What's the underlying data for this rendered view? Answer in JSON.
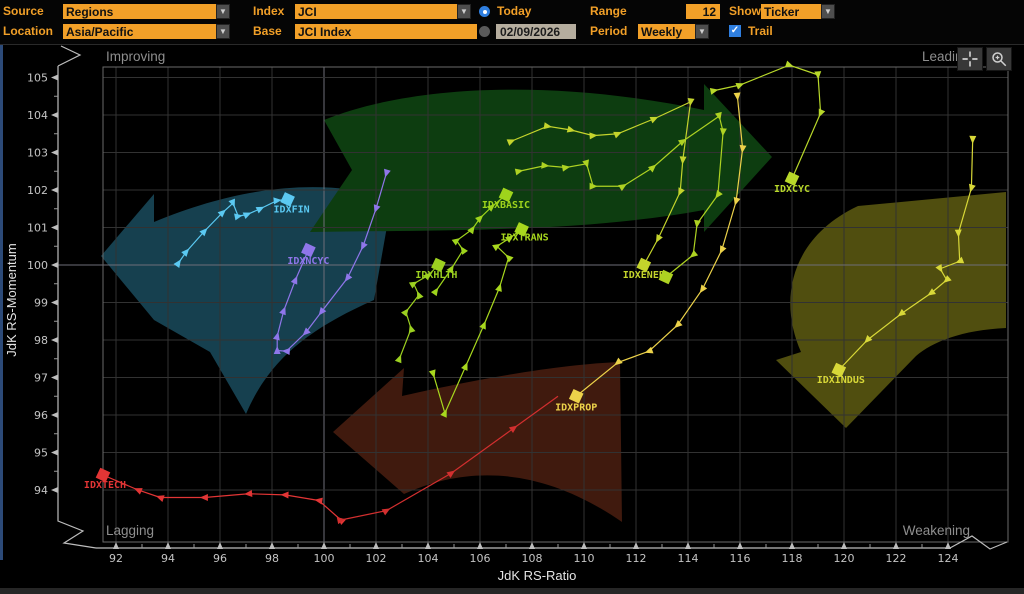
{
  "toolbar": {
    "source_label": "Source",
    "source_value": "Regions",
    "index_label": "Index",
    "index_value": "JCI",
    "today_label": "Today",
    "range_label": "Range",
    "range_value": "12",
    "show_label": "Show",
    "show_value": "Ticker",
    "location_label": "Location",
    "location_value": "Asia/Pacific",
    "base_label": "Base",
    "base_value": "JCI Index",
    "date_value": "02/09/2026",
    "period_label": "Period",
    "period_value": "Weekly",
    "trail_label": "Trail"
  },
  "colors": {
    "accent_orange": "#f2a028",
    "radio_blue": "#2f7fe0",
    "date_field_bg": "#b5ad9e",
    "grid": "#323232",
    "grid_center": "#6e6e78",
    "box_border": "#6a6a6a",
    "tick_text": "#c4c4c4",
    "quadrant_text": "#8e8e8e",
    "axis_title_text": "#e4e4e4"
  },
  "chart_data": {
    "type": "scatter",
    "xlabel": "JdK RS-Ratio",
    "ylabel": "JdK RS-Momentum",
    "x_ticks": [
      92,
      94,
      96,
      98,
      100,
      102,
      104,
      106,
      108,
      110,
      112,
      114,
      116,
      118,
      120,
      122,
      124
    ],
    "y_ticks": [
      94,
      95,
      96,
      97,
      98,
      99,
      100,
      101,
      102,
      103,
      104,
      105
    ],
    "xlim": [
      91.5,
      126.3
    ],
    "ylim": [
      92.6,
      105.3
    ],
    "center": [
      100,
      100
    ],
    "grid": true,
    "quadrant_labels": {
      "top_left": "Improving",
      "top_right": "Leading",
      "bottom_left": "Lagging",
      "bottom_right": "Weakening"
    },
    "quadrant_arrow_colors": {
      "left": "#16404f",
      "top": "#0d3d10",
      "right": "#504e0f",
      "bottom": "#401a0e"
    },
    "series": [
      {
        "label": "IDXTECH",
        "color": "#e23535",
        "head": [
          91.5,
          94.4
        ],
        "label_dx": 2,
        "label_dy": 13,
        "trail": [
          [
            100.65,
            93.2
          ],
          [
            99.8,
            93.72
          ],
          [
            98.5,
            93.87
          ],
          [
            97.1,
            93.9
          ],
          [
            95.4,
            93.8
          ],
          [
            93.7,
            93.8
          ],
          [
            92.85,
            94.0
          ]
        ]
      },
      {
        "label": "",
        "color": "#d22f2f",
        "head": null,
        "trail": [
          [
            100.65,
            93.2
          ],
          [
            102.4,
            93.45
          ],
          [
            104.9,
            94.45
          ],
          [
            107.3,
            95.65
          ],
          [
            109.0,
            96.5
          ]
        ]
      },
      {
        "label": "IDXNCYC",
        "color": "#8f76ea",
        "head": [
          99.4,
          100.4
        ],
        "label_dx": 0,
        "label_dy": 14,
        "trail": [
          [
            102.4,
            102.45
          ],
          [
            102.0,
            101.5
          ],
          [
            101.5,
            100.5
          ],
          [
            100.9,
            99.65
          ],
          [
            99.9,
            98.75
          ],
          [
            99.3,
            98.2
          ],
          [
            98.55,
            97.7
          ],
          [
            98.2,
            97.72
          ],
          [
            98.2,
            98.1
          ],
          [
            98.45,
            98.78
          ],
          [
            98.9,
            99.6
          ]
        ]
      },
      {
        "label": "IDXFIN",
        "color": "#5bc9f2",
        "head": [
          98.6,
          101.75
        ],
        "label_dx": 4,
        "label_dy": 13,
        "trail": [
          [
            94.4,
            100.05
          ],
          [
            94.7,
            100.35
          ],
          [
            95.4,
            100.9
          ],
          [
            96.1,
            101.4
          ],
          [
            96.5,
            101.65
          ],
          [
            96.7,
            101.3
          ],
          [
            97.05,
            101.35
          ],
          [
            97.55,
            101.5
          ],
          [
            98.2,
            101.72
          ]
        ]
      },
      {
        "label": "IDXHLTH",
        "color": "#9cd020",
        "head": [
          104.4,
          100.0
        ],
        "label_dx": -2,
        "label_dy": 13,
        "trail": [
          [
            102.9,
            97.5
          ],
          [
            103.35,
            98.3
          ],
          [
            103.15,
            98.75
          ],
          [
            103.65,
            99.2
          ],
          [
            103.45,
            99.5
          ],
          [
            104.0,
            99.72
          ]
        ]
      },
      {
        "label": "IDXTRANS",
        "color": "#a8d81e",
        "head": [
          107.6,
          100.95
        ],
        "label_dx": 3,
        "label_dy": 11,
        "trail": [
          [
            104.2,
            97.1
          ],
          [
            104.65,
            96.05
          ],
          [
            105.45,
            97.3
          ],
          [
            106.15,
            98.4
          ],
          [
            106.75,
            99.4
          ],
          [
            107.1,
            100.2
          ],
          [
            106.65,
            100.5
          ],
          [
            107.15,
            100.72
          ]
        ]
      },
      {
        "label": "IDXBASIC",
        "color": "#9ed41c",
        "head": [
          107.0,
          101.87
        ],
        "label_dx": 0,
        "label_dy": 13,
        "trail": [
          [
            104.3,
            99.3
          ],
          [
            104.9,
            99.9
          ],
          [
            105.35,
            100.4
          ],
          [
            105.1,
            100.65
          ],
          [
            105.7,
            100.95
          ],
          [
            106.0,
            101.25
          ],
          [
            106.45,
            101.55
          ]
        ]
      },
      {
        "label": "IDXENER",
        "color": "#c4d42c",
        "head": [
          112.3,
          100.0
        ],
        "label_dx": 0,
        "label_dy": 13,
        "trail": [
          [
            107.2,
            103.3
          ],
          [
            108.6,
            103.7
          ],
          [
            109.5,
            103.6
          ],
          [
            110.35,
            103.45
          ],
          [
            111.3,
            103.5
          ],
          [
            112.7,
            103.9
          ],
          [
            114.1,
            104.35
          ],
          [
            113.8,
            102.8
          ],
          [
            113.7,
            101.95
          ],
          [
            112.85,
            100.7
          ]
        ]
      },
      {
        "label": "",
        "color": "#aed222",
        "head": [
          113.15,
          99.68
        ],
        "trail": [
          [
            107.5,
            102.5
          ],
          [
            108.5,
            102.65
          ],
          [
            109.3,
            102.6
          ],
          [
            110.1,
            102.7
          ],
          [
            110.35,
            102.1
          ],
          [
            111.5,
            102.1
          ],
          [
            112.65,
            102.6
          ],
          [
            113.8,
            103.3
          ],
          [
            115.2,
            103.97
          ],
          [
            115.35,
            103.55
          ],
          [
            115.15,
            101.87
          ],
          [
            114.35,
            101.1
          ],
          [
            114.2,
            100.27
          ]
        ]
      },
      {
        "label": "IDXPROP",
        "color": "#ecd24a",
        "head": [
          109.7,
          96.5
        ],
        "label_dx": 0,
        "label_dy": 14,
        "trail": [
          [
            115.9,
            104.5
          ],
          [
            116.1,
            103.1
          ],
          [
            115.85,
            101.7
          ],
          [
            115.3,
            100.4
          ],
          [
            114.55,
            99.35
          ],
          [
            113.6,
            98.4
          ],
          [
            112.5,
            97.7
          ],
          [
            111.3,
            97.4
          ]
        ]
      },
      {
        "label": "IDXCYC",
        "color": "#b8d82a",
        "head": [
          118.0,
          102.3
        ],
        "label_dx": 0,
        "label_dy": 13,
        "trail": [
          [
            115.0,
            104.65
          ],
          [
            116.0,
            104.8
          ],
          [
            117.9,
            105.33
          ],
          [
            119.0,
            105.07
          ],
          [
            119.1,
            104.05
          ]
        ]
      },
      {
        "label": "IDXINDUS",
        "color": "#d8d838",
        "head": [
          119.8,
          97.2
        ],
        "label_dx": 2,
        "label_dy": 13,
        "trail": [
          [
            124.95,
            103.35
          ],
          [
            124.9,
            102.05
          ],
          [
            124.4,
            100.85
          ],
          [
            124.45,
            100.1
          ],
          [
            123.7,
            99.9
          ],
          [
            123.95,
            99.6
          ],
          [
            123.35,
            99.25
          ],
          [
            122.2,
            98.7
          ],
          [
            120.9,
            98.0
          ]
        ]
      }
    ]
  }
}
